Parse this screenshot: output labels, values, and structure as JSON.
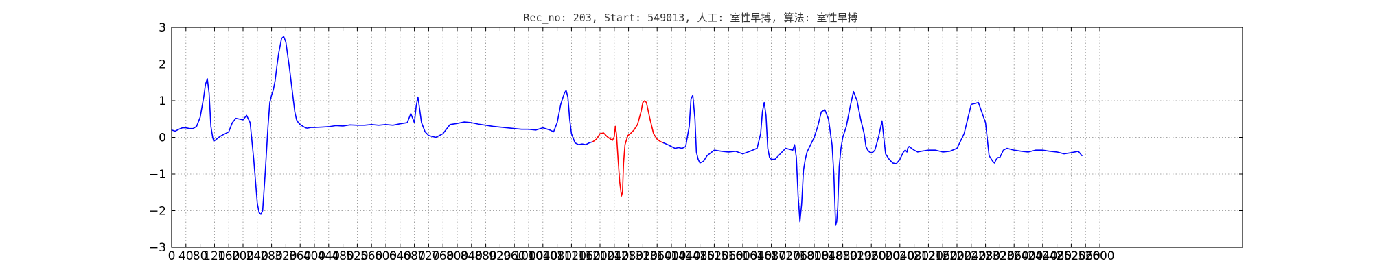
{
  "chart_data": {
    "type": "line",
    "title": "Rec_no: 203, Start: 549013, 人工: 室性早搏, 算法: 室性早搏",
    "xlabel": "",
    "ylabel": "",
    "xlim": [
      0,
      3000
    ],
    "ylim": [
      -3,
      3
    ],
    "grid": true,
    "y_ticks": [
      -3,
      -2,
      -1,
      0,
      1,
      2,
      3
    ],
    "y_tick_labels": [
      "−3",
      "−2",
      "−1",
      "0",
      "1",
      "2",
      "3"
    ],
    "x_ticks": [
      0,
      40,
      80,
      120,
      160,
      200,
      240,
      280,
      320,
      360,
      400,
      440,
      480,
      520,
      560,
      600,
      640,
      680,
      720,
      760,
      800,
      840,
      880,
      920,
      960,
      1000,
      1040,
      1080,
      1120,
      1160,
      1200,
      1240,
      1280,
      1320,
      1360,
      1400,
      1440,
      1480,
      1520,
      1560,
      1600,
      1640,
      1680,
      1720,
      1760,
      1800,
      1840,
      1880,
      1920,
      1960,
      2000,
      2040,
      2080,
      2120,
      2160,
      2200,
      2240,
      2280,
      2320,
      2360,
      2400,
      2440,
      2480,
      2520,
      2560,
      2600
    ],
    "colors": {
      "normal": "#0000ff",
      "highlight": "#ff0000",
      "grid": "#888888",
      "axis": "#000000"
    },
    "series": [
      {
        "color": "#0000ff",
        "x": [
          0,
          10,
          20,
          30,
          40,
          50,
          60,
          70,
          80,
          90,
          95,
          100,
          105,
          110,
          115,
          118,
          122,
          126,
          132,
          140,
          150,
          160,
          170,
          180,
          190,
          200,
          210,
          220,
          230,
          240,
          245,
          250,
          255,
          262,
          270,
          275,
          280,
          285,
          290,
          295,
          300,
          308,
          314,
          320,
          330,
          340,
          345,
          350,
          355,
          360,
          368,
          375,
          380,
          390,
          400,
          420,
          440,
          460,
          480,
          500,
          520,
          540,
          560,
          580,
          600,
          620,
          640,
          660,
          670,
          680,
          685,
          690,
          700,
          710,
          720,
          740,
          760,
          780,
          800,
          820,
          840,
          860,
          880,
          900,
          920,
          940,
          960,
          980,
          1000,
          1020,
          1040,
          1060,
          1070,
          1080,
          1090,
          1100,
          1105,
          1110,
          1115,
          1120,
          1130,
          1140,
          1150,
          1160,
          1170,
          1180
        ],
        "y": [
          0.2,
          0.17,
          0.22,
          0.26,
          0.26,
          0.24,
          0.24,
          0.3,
          0.55,
          1.1,
          1.45,
          1.6,
          1.2,
          0.3,
          0.0,
          -0.1,
          -0.08,
          -0.05,
          0.0,
          0.05,
          0.1,
          0.15,
          0.4,
          0.52,
          0.5,
          0.48,
          0.6,
          0.4,
          -0.6,
          -1.8,
          -2.05,
          -2.1,
          -2.0,
          -1.0,
          0.3,
          0.95,
          1.15,
          1.3,
          1.55,
          1.95,
          2.3,
          2.7,
          2.75,
          2.6,
          1.9,
          1.1,
          0.7,
          0.48,
          0.4,
          0.35,
          0.3,
          0.26,
          0.25,
          0.27,
          0.27,
          0.28,
          0.29,
          0.32,
          0.31,
          0.34,
          0.33,
          0.33,
          0.35,
          0.33,
          0.35,
          0.33,
          0.37,
          0.4,
          0.65,
          0.4,
          0.85,
          1.1,
          0.4,
          0.15,
          0.05,
          0.0,
          0.1,
          0.35,
          0.38,
          0.42,
          0.4,
          0.36,
          0.33,
          0.3,
          0.28,
          0.26,
          0.24,
          0.22,
          0.22,
          0.2,
          0.26,
          0.2,
          0.15,
          0.4,
          0.9,
          1.2,
          1.28,
          1.1,
          0.5,
          0.1,
          -0.15,
          -0.2,
          -0.18,
          -0.2,
          -0.15,
          -0.12
        ]
      },
      {
        "color": "#ff0000",
        "x": [
          1180,
          1190,
          1200,
          1210,
          1220,
          1230,
          1235,
          1240,
          1243,
          1246,
          1250,
          1255,
          1260,
          1263,
          1266,
          1270,
          1278,
          1285,
          1295,
          1305,
          1315,
          1320,
          1325,
          1330,
          1340,
          1350,
          1360,
          1370,
          1378
        ],
        "y": [
          -0.12,
          -0.05,
          0.1,
          0.12,
          0.02,
          -0.05,
          -0.08,
          0.02,
          0.3,
          0.1,
          -0.5,
          -1.2,
          -1.6,
          -1.5,
          -0.7,
          -0.2,
          0.05,
          0.1,
          0.2,
          0.35,
          0.7,
          0.95,
          1.0,
          0.95,
          0.5,
          0.1,
          -0.05,
          -0.12,
          -0.15
        ]
      },
      {
        "color": "#0000ff",
        "x": [
          1378,
          1390,
          1400,
          1410,
          1420,
          1430,
          1440,
          1450,
          1455,
          1460,
          1466,
          1470,
          1475,
          1480,
          1490,
          1500,
          1520,
          1540,
          1560,
          1580,
          1600,
          1620,
          1640,
          1650,
          1655,
          1660,
          1665,
          1670,
          1675,
          1680,
          1690,
          1700,
          1720,
          1740,
          1745,
          1750,
          1755,
          1760,
          1765,
          1770,
          1775,
          1780,
          1785,
          1790,
          1800,
          1810,
          1820,
          1830,
          1840,
          1850,
          1855,
          1860,
          1863,
          1866,
          1870,
          1875,
          1880,
          1890,
          1900,
          1910,
          1920,
          1930,
          1940,
          1945,
          1950,
          1955,
          1960,
          1965,
          1970,
          1980,
          1990,
          2000,
          2010,
          2020,
          2030,
          2040,
          2050,
          2055,
          2060,
          2062,
          2066,
          2070,
          2080,
          2090,
          2100,
          2120,
          2140,
          2160,
          2180,
          2200,
          2220,
          2240,
          2260,
          2280,
          2290,
          2300,
          2305,
          2310,
          2315,
          2320,
          2330,
          2340,
          2360,
          2380,
          2400,
          2420,
          2440,
          2460,
          2480,
          2500,
          2520,
          2540,
          2550
        ],
        "y": [
          -0.15,
          -0.2,
          -0.25,
          -0.3,
          -0.28,
          -0.3,
          -0.25,
          0.3,
          1.05,
          1.15,
          0.5,
          -0.4,
          -0.6,
          -0.7,
          -0.65,
          -0.5,
          -0.35,
          -0.38,
          -0.4,
          -0.38,
          -0.45,
          -0.38,
          -0.3,
          0.1,
          0.7,
          0.95,
          0.6,
          -0.3,
          -0.55,
          -0.6,
          -0.6,
          -0.5,
          -0.3,
          -0.35,
          -0.2,
          -0.55,
          -1.6,
          -2.3,
          -1.8,
          -0.9,
          -0.6,
          -0.4,
          -0.3,
          -0.2,
          0.0,
          0.3,
          0.7,
          0.75,
          0.5,
          -0.2,
          -1.0,
          -2.4,
          -2.3,
          -1.9,
          -0.8,
          -0.3,
          0.0,
          0.3,
          0.8,
          1.25,
          1.0,
          0.5,
          0.1,
          -0.25,
          -0.35,
          -0.4,
          -0.42,
          -0.4,
          -0.35,
          0.0,
          0.45,
          -0.45,
          -0.6,
          -0.7,
          -0.72,
          -0.6,
          -0.4,
          -0.35,
          -0.4,
          -0.3,
          -0.25,
          -0.28,
          -0.35,
          -0.4,
          -0.38,
          -0.35,
          -0.35,
          -0.4,
          -0.38,
          -0.3,
          0.1,
          0.9,
          0.95,
          0.4,
          -0.5,
          -0.65,
          -0.7,
          -0.6,
          -0.55,
          -0.55,
          -0.35,
          -0.3,
          -0.35,
          -0.38,
          -0.4,
          -0.35,
          -0.35,
          -0.38,
          -0.4,
          -0.45,
          -0.42,
          -0.38,
          -0.5
        ]
      }
    ]
  }
}
